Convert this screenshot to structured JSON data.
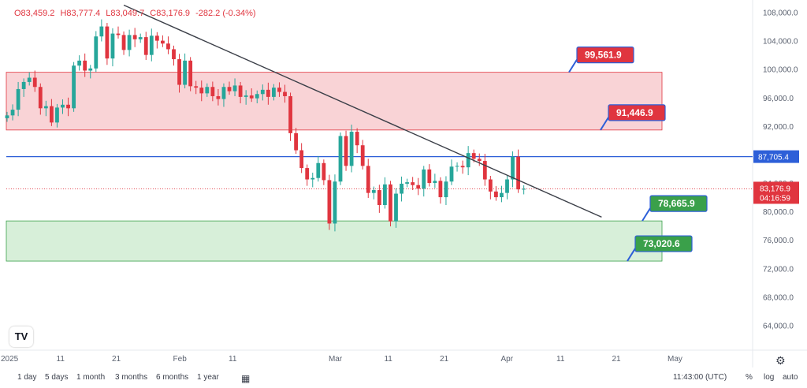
{
  "ohlc": {
    "open": "O83,459.2",
    "high": "H83,777.4",
    "low": "L83,049.7",
    "close": "C83,176.9",
    "change": "-282.2 (-0.34%)"
  },
  "chart_data": {
    "type": "candlestick",
    "title": "",
    "xlabel": "",
    "ylabel": "",
    "ylim": [
      60500,
      109500
    ],
    "y_ticks": [
      "108,000.0",
      "104,000.0",
      "100,000.0",
      "96,000.0",
      "92,000.0",
      "84,000.0",
      "80,000.0",
      "76,000.0",
      "72,000.0",
      "68,000.0",
      "64,000.0"
    ],
    "x_ticks": [
      {
        "day": 0,
        "label": "2025"
      },
      {
        "day": 10,
        "label": "11"
      },
      {
        "day": 20,
        "label": "21"
      },
      {
        "day": 31,
        "label": "Feb"
      },
      {
        "day": 41,
        "label": "11"
      },
      {
        "day": 59,
        "label": "Mar"
      },
      {
        "day": 69,
        "label": "11"
      },
      {
        "day": 79,
        "label": "21"
      },
      {
        "day": 90,
        "label": "Apr"
      },
      {
        "day": 100,
        "label": "11"
      },
      {
        "day": 110,
        "label": "21"
      },
      {
        "day": 120,
        "label": "May"
      }
    ],
    "close_series": [
      93500,
      94300,
      97200,
      98200,
      98800,
      97500,
      94500,
      94800,
      92500,
      94600,
      95000,
      94500,
      100500,
      101200,
      99800,
      100100,
      104600,
      106000,
      101500,
      105000,
      104800,
      102700,
      104800,
      104200,
      104500,
      102000,
      104700,
      104000,
      103600,
      102800,
      101400,
      97800,
      101200,
      97600,
      97400,
      96600,
      97500,
      96200,
      95800,
      97500,
      96900,
      97700,
      96100,
      96300,
      95900,
      96500,
      97100,
      96100,
      97400,
      96800,
      96200,
      91000,
      88600,
      86100,
      84500,
      84700,
      86800,
      84400,
      78300,
      84200,
      90600,
      86400,
      91200,
      89300,
      86400,
      82600,
      83000,
      80900,
      83800,
      78600,
      82500,
      83900,
      84100,
      83700,
      83200,
      85900,
      84000,
      84300,
      82000,
      84200,
      86300,
      86400,
      86200,
      88200,
      87400,
      87100,
      84500,
      82800,
      82000,
      82600,
      84500,
      87700,
      83100,
      83176.9
    ],
    "horizontal_levels": [
      {
        "value": 87705.4,
        "label": "87,705.4"
      }
    ],
    "current_price": {
      "value": 83176.9,
      "label": "83,176.9",
      "countdown": "04:16:59"
    },
    "zones": [
      {
        "name": "resistance",
        "from": 91446.9,
        "to": 99561.9
      },
      {
        "name": "support",
        "from": 73020.6,
        "to": 78665.9
      }
    ],
    "callouts": [
      {
        "label": "99,561.9",
        "price": 99561.9,
        "color": "#e0353f"
      },
      {
        "label": "91,446.9",
        "price": 91446.9,
        "color": "#e0353f"
      },
      {
        "label": "78,665.9",
        "price": 78665.9,
        "color": "#3aa04a"
      },
      {
        "label": "73,020.6",
        "price": 73020.6,
        "color": "#3aa04a"
      }
    ],
    "trendline": {
      "from": {
        "day": 21,
        "price": 109000
      },
      "to": {
        "day": 107,
        "price": 79200
      }
    },
    "colors": {
      "up": "#26a69a",
      "down": "#e0353f",
      "level": "#2d5fd8"
    }
  },
  "bottom_bar": {
    "ranges": [
      "1 day",
      "5 days",
      "1 month",
      "3 months",
      "6 months",
      "1 year"
    ],
    "clock": "11:43:00 (UTC)",
    "percent": "%",
    "log": "log",
    "auto": "auto"
  },
  "logo_text": "TV"
}
